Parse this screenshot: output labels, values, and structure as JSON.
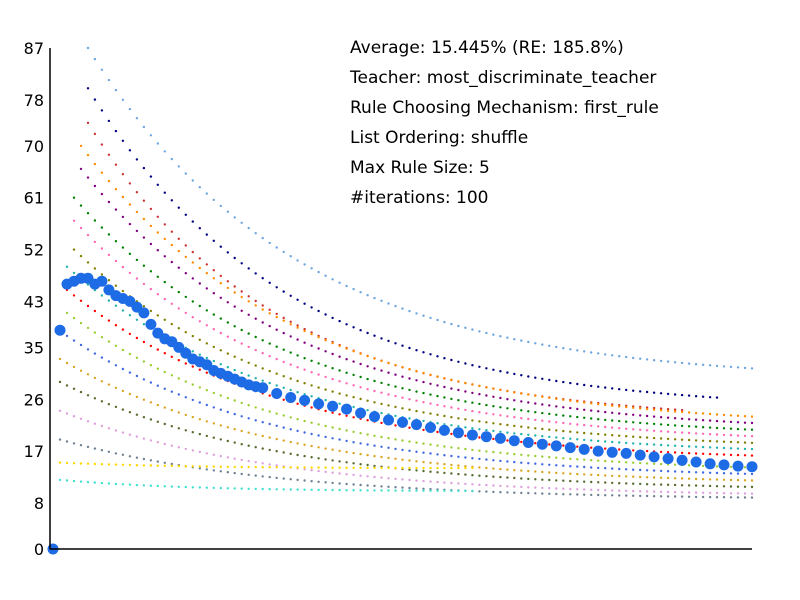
{
  "info": {
    "average": "Average: 15.445% (RE: 185.8%)",
    "teacher": "Teacher: most_discriminate_teacher",
    "rule": "Rule Choosing Mechanism: first_rule",
    "ordering": "List Ordering: shuffle",
    "max_rule": "Max Rule Size: 5",
    "iterations": "#iterations: 100"
  },
  "chart_data": {
    "type": "scatter",
    "title": "",
    "xlabel": "",
    "ylabel": "",
    "ylim": [
      0,
      87
    ],
    "xlim": [
      0,
      100
    ],
    "y_ticks": [
      0,
      8,
      17,
      26,
      35,
      43,
      52,
      61,
      70,
      78,
      87
    ],
    "grid": false,
    "main_series": {
      "color": "#1e6be6",
      "x": [
        0,
        1,
        2,
        3,
        4,
        5,
        6,
        7,
        8,
        9,
        10,
        11,
        12,
        13,
        14,
        15,
        16,
        17,
        18,
        19,
        20,
        21,
        22,
        23,
        24,
        25,
        26,
        27,
        28,
        29,
        30,
        32,
        34,
        36,
        38,
        40,
        42,
        44,
        46,
        48,
        50,
        52,
        54,
        56,
        58,
        60,
        62,
        64,
        66,
        68,
        70,
        72,
        74,
        76,
        78,
        80,
        82,
        84,
        86,
        88,
        90,
        92,
        94,
        96,
        98,
        100
      ],
      "y": [
        0,
        38,
        46,
        46.5,
        47,
        47,
        46,
        46.5,
        45,
        44,
        43.5,
        43,
        42,
        41,
        39,
        37.5,
        36.5,
        36,
        35,
        34,
        33,
        32.5,
        32,
        31,
        30.5,
        30,
        29.5,
        29,
        28.5,
        28.2,
        28,
        27,
        26.3,
        25.8,
        25.2,
        24.8,
        24.3,
        23.6,
        23,
        22.4,
        22,
        21.6,
        21.1,
        20.6,
        20.2,
        19.8,
        19.5,
        19.2,
        18.8,
        18.5,
        18.2,
        17.9,
        17.6,
        17.3,
        17,
        16.8,
        16.6,
        16.3,
        16,
        15.7,
        15.4,
        15.1,
        14.8,
        14.6,
        14.4,
        14.3
      ]
    },
    "background_series": [
      {
        "color": "#6ca6e0",
        "start": 5,
        "end": 100,
        "peak": 87,
        "final": 29
      },
      {
        "color": "#000080",
        "start": 5,
        "end": 95,
        "peak": 80,
        "final": 24
      },
      {
        "color": "#cc3333",
        "start": 5,
        "end": 90,
        "peak": 74,
        "final": 22
      },
      {
        "color": "#ff8c00",
        "start": 4,
        "end": 100,
        "peak": 70,
        "final": 21
      },
      {
        "color": "#800080",
        "start": 4,
        "end": 100,
        "peak": 66,
        "final": 20
      },
      {
        "color": "#008000",
        "start": 3,
        "end": 100,
        "peak": 61,
        "final": 19
      },
      {
        "color": "#ff69b4",
        "start": 3,
        "end": 100,
        "peak": 57,
        "final": 18
      },
      {
        "color": "#808000",
        "start": 3,
        "end": 100,
        "peak": 52,
        "final": 17
      },
      {
        "color": "#20b2aa",
        "start": 2,
        "end": 100,
        "peak": 49,
        "final": 16
      },
      {
        "color": "#ff0000",
        "start": 2,
        "end": 100,
        "peak": 45,
        "final": 15
      },
      {
        "color": "#9acd32",
        "start": 2,
        "end": 100,
        "peak": 41,
        "final": 13
      },
      {
        "color": "#4169e1",
        "start": 2,
        "end": 100,
        "peak": 37,
        "final": 12
      },
      {
        "color": "#daa520",
        "start": 1,
        "end": 100,
        "peak": 33,
        "final": 11
      },
      {
        "color": "#556b2f",
        "start": 1,
        "end": 100,
        "peak": 29,
        "final": 10
      },
      {
        "color": "#dda0dd",
        "start": 1,
        "end": 100,
        "peak": 24,
        "final": 9
      },
      {
        "color": "#708090",
        "start": 1,
        "end": 100,
        "peak": 19,
        "final": 8.5
      },
      {
        "color": "#ffd700",
        "start": 1,
        "end": 60,
        "peak": 15,
        "final": 14
      },
      {
        "color": "#40e0d0",
        "start": 1,
        "end": 60,
        "peak": 12,
        "final": 10
      }
    ]
  }
}
